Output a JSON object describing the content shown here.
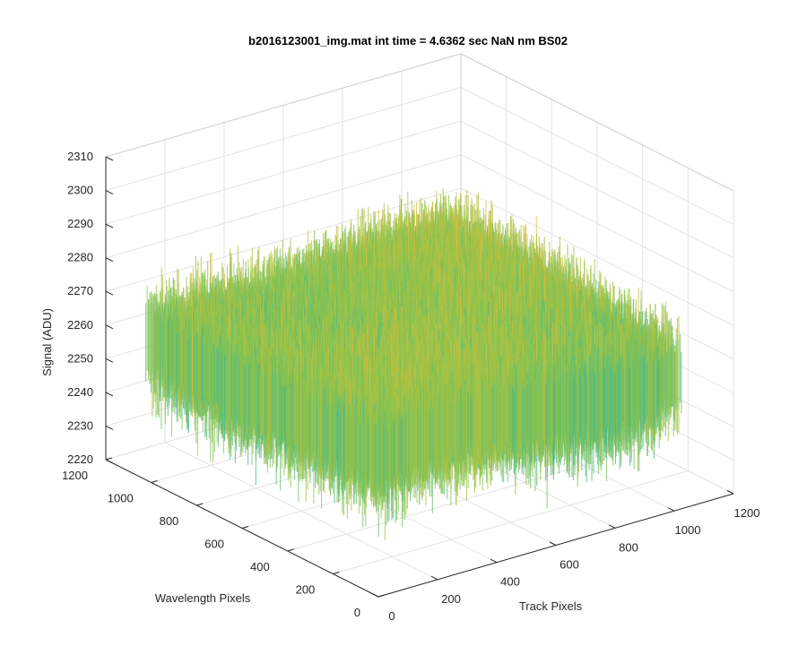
{
  "chart_data": {
    "type": "surface",
    "title": "b2016123001_img.mat int time = 4.6362 sec  NaN nm BS02",
    "xlabel": "Track Pixels",
    "ylabel": "Wavelength Pixels",
    "zlabel": "Signal (ADU)",
    "xlim": [
      0,
      1200
    ],
    "ylim": [
      0,
      1200
    ],
    "zlim": [
      2220,
      2310
    ],
    "xticks": [
      "0",
      "200",
      "400",
      "600",
      "800",
      "1000",
      "1200"
    ],
    "yticks": [
      "0",
      "200",
      "400",
      "600",
      "800",
      "1000",
      "1200"
    ],
    "zticks": [
      "2220",
      "2230",
      "2240",
      "2250",
      "2260",
      "2270",
      "2280",
      "2290",
      "2300",
      "2310"
    ],
    "grid": true,
    "colormap": "parula",
    "colors": {
      "low": "#1a8fd8",
      "mid": "#2bb5a6",
      "upper": "#8fc449",
      "high": "#e8bc3a"
    },
    "surface_extent": {
      "x": [
        0,
        1024
      ],
      "y": [
        0,
        1024
      ]
    },
    "surface_summary": {
      "mean_signal": 2262,
      "typical_min": 2240,
      "typical_max": 2290
    }
  }
}
